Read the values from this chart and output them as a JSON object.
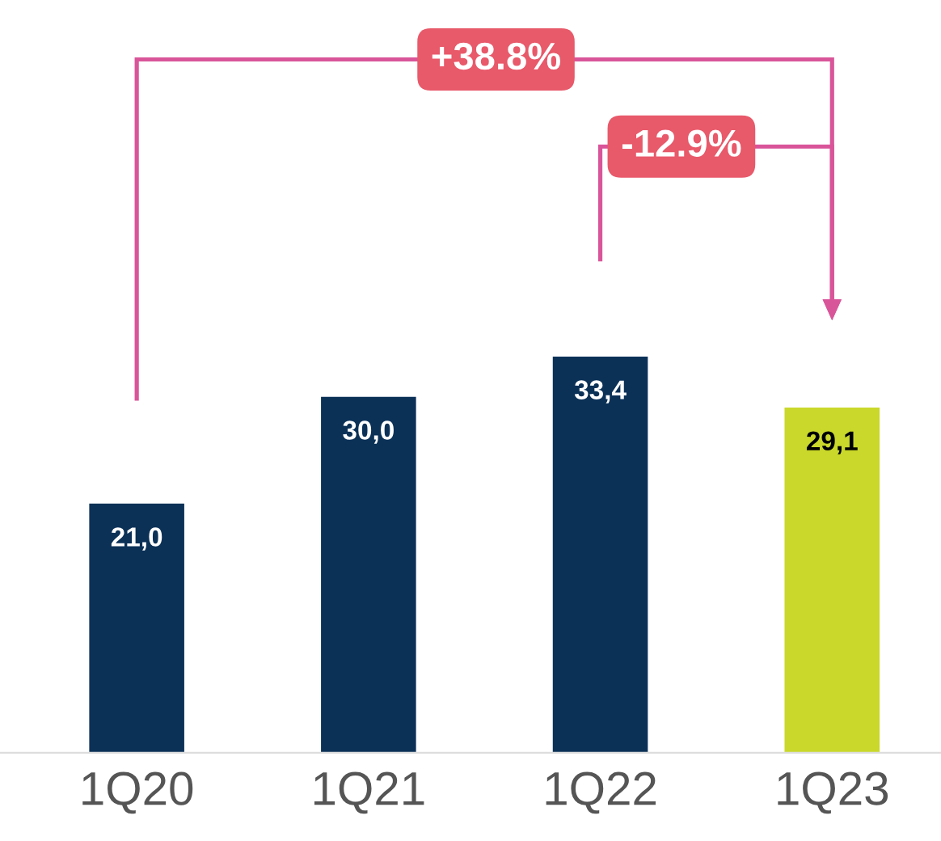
{
  "chart_data": {
    "type": "bar",
    "categories": [
      "1Q20",
      "1Q21",
      "1Q22",
      "1Q23"
    ],
    "values": [
      21.0,
      30.0,
      33.4,
      29.1
    ],
    "value_labels": [
      "21,0",
      "30,0",
      "33,4",
      "29,1"
    ],
    "colors": [
      "#0b3157",
      "#0b3157",
      "#0b3157",
      "#c9d82a"
    ],
    "annotations": [
      "+38.8%",
      "-12.9%"
    ]
  }
}
